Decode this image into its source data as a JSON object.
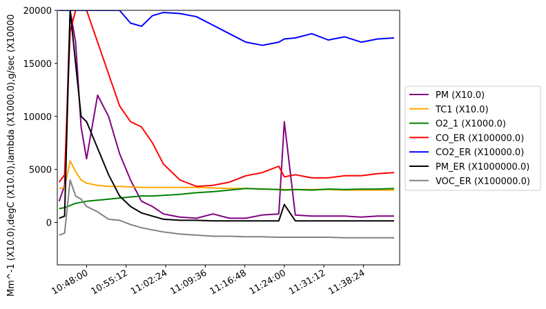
{
  "chart_data": {
    "type": "line",
    "title": "",
    "xlabel": "",
    "ylabel": "Mm^-1 (X10.0),degC (X10.0),lambda (X1000.0),g/sec (X10000",
    "x_ticks": [
      "10:48:00",
      "10:55:12",
      "11:02:24",
      "11:09:36",
      "11:16:48",
      "11:24:00",
      "11:31:12",
      "11:38:24"
    ],
    "y_ticks": [
      0,
      5000,
      10000,
      15000,
      20000
    ],
    "xlim": [
      "10:42:40",
      "11:45:00"
    ],
    "ylim": [
      -4000,
      20000
    ],
    "grid": false,
    "legend_position": "right",
    "x": [
      "10:43:00",
      "10:44:00",
      "10:45:00",
      "10:46:00",
      "10:47:00",
      "10:48:00",
      "10:50:00",
      "10:52:00",
      "10:54:00",
      "10:56:00",
      "10:58:00",
      "11:00:00",
      "11:02:00",
      "11:05:00",
      "11:08:00",
      "11:11:00",
      "11:14:00",
      "11:17:00",
      "11:20:00",
      "11:23:00",
      "11:24:00",
      "11:26:00",
      "11:29:00",
      "11:32:00",
      "11:35:00",
      "11:38:00",
      "11:41:00",
      "11:44:00"
    ],
    "series": [
      {
        "name": "PM (X10.0)",
        "color": "#800080",
        "values": [
          2000,
          3500,
          20000,
          17000,
          9000,
          6000,
          12000,
          10000,
          6500,
          4000,
          2000,
          1500,
          800,
          500,
          400,
          800,
          400,
          400,
          700,
          800,
          9500,
          700,
          600,
          600,
          600,
          500,
          600,
          600
        ]
      },
      {
        "name": "TC1 (X10.0)",
        "color": "#ffa500",
        "values": [
          3200,
          3300,
          5800,
          4800,
          4000,
          3700,
          3500,
          3400,
          3400,
          3350,
          3300,
          3300,
          3300,
          3300,
          3300,
          3250,
          3200,
          3200,
          3150,
          3100,
          3100,
          3100,
          3100,
          3100,
          3050,
          3050,
          3050,
          3050
        ]
      },
      {
        "name": "O2_1 (X1000.0)",
        "color": "#008000",
        "values": [
          1300,
          1400,
          1600,
          1800,
          1900,
          2000,
          2100,
          2200,
          2300,
          2400,
          2500,
          2500,
          2550,
          2650,
          2800,
          2900,
          3050,
          3200,
          3150,
          3100,
          3050,
          3100,
          3050,
          3150,
          3100,
          3150,
          3150,
          3200
        ]
      },
      {
        "name": "CO_ER (X100000.0)",
        "color": "#ff0000",
        "values": [
          3800,
          4500,
          18000,
          20000,
          20000,
          20000,
          17000,
          14000,
          11000,
          9500,
          9000,
          7500,
          5500,
          4000,
          3400,
          3500,
          3800,
          4400,
          4700,
          5300,
          4300,
          4500,
          4200,
          4200,
          4400,
          4400,
          4600,
          4700
        ]
      },
      {
        "name": "CO2_ER (X10000.0)",
        "color": "#0000ff",
        "values": [
          20000,
          20000,
          20000,
          20000,
          20000,
          20000,
          20000,
          20000,
          20000,
          18800,
          18500,
          19500,
          19800,
          19700,
          19400,
          18600,
          17800,
          17000,
          16700,
          17000,
          17300,
          17400,
          17800,
          17200,
          17500,
          17000,
          17300,
          17400
        ]
      },
      {
        "name": "PM_ER (X1000000.0)",
        "color": "#000000",
        "values": [
          400,
          600,
          20000,
          15000,
          10000,
          9500,
          7000,
          4500,
          2500,
          1500,
          900,
          600,
          300,
          200,
          200,
          150,
          150,
          150,
          150,
          150,
          1700,
          150,
          150,
          150,
          150,
          150,
          150,
          150
        ]
      },
      {
        "name": "VOC_ER (X100000.0)",
        "color": "#808080",
        "values": [
          -1200,
          -1000,
          4000,
          2500,
          2200,
          1500,
          1000,
          300,
          200,
          -200,
          -500,
          -700,
          -900,
          -1100,
          -1200,
          -1300,
          -1300,
          -1350,
          -1350,
          -1400,
          -1400,
          -1400,
          -1400,
          -1400,
          -1450,
          -1450,
          -1450,
          -1450
        ]
      }
    ]
  }
}
